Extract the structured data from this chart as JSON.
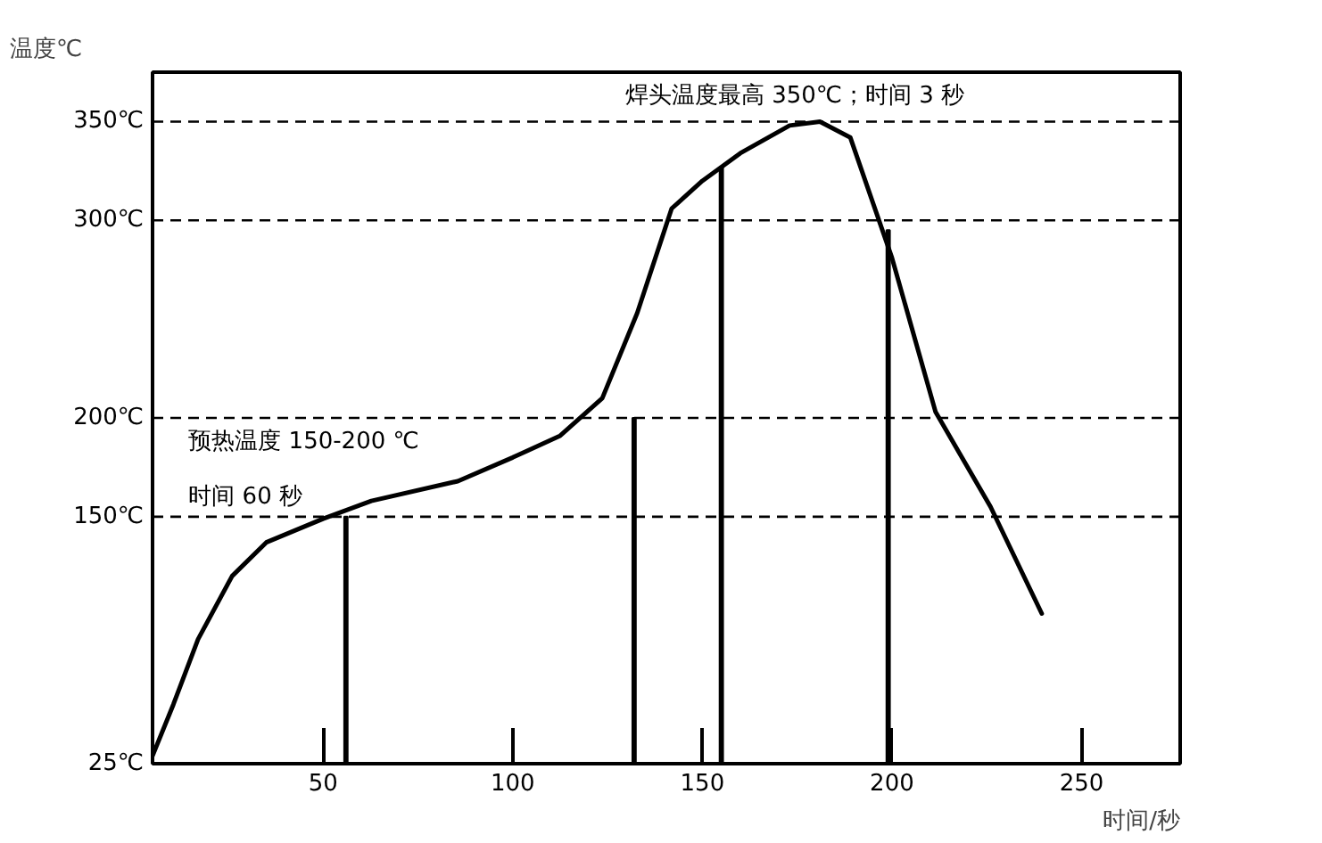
{
  "chart_data": {
    "type": "line",
    "xlabel": "时间/秒",
    "ylabel": "温度℃",
    "xlim": [
      5,
      276
    ],
    "ylim": [
      25,
      375
    ],
    "xticks": [
      50,
      100,
      150,
      200,
      250
    ],
    "yticks": [
      {
        "value": 25,
        "label": "25℃"
      },
      {
        "value": 150,
        "label": "150℃"
      },
      {
        "value": 200,
        "label": "200℃"
      },
      {
        "value": 300,
        "label": "300℃"
      },
      {
        "value": 350,
        "label": "350℃"
      }
    ],
    "series": [
      {
        "color": "#000000",
        "x": [
          5,
          10.5,
          17,
          26,
          35,
          50,
          62.7,
          85.5,
          100,
          112.5,
          123.6,
          132.8,
          141.9,
          150,
          160,
          173,
          181,
          189,
          200,
          211.5,
          226,
          239.5
        ],
        "values": [
          29,
          55,
          88,
          120,
          137,
          149,
          158,
          168,
          180,
          191,
          210,
          253,
          306,
          320,
          334,
          348,
          350,
          342,
          281,
          203,
          155,
          101
        ]
      },
      {
        "type": "bar",
        "color": "#000000",
        "x": [
          56,
          132,
          155,
          199
        ],
        "values": [
          150,
          200,
          327,
          295
        ]
      }
    ],
    "ref_lines": [
      {
        "axis": "y",
        "value": 350,
        "line_style": "dashed",
        "color": "#000000"
      },
      {
        "axis": "y",
        "value": 300,
        "line_style": "dashed",
        "color": "#000000"
      },
      {
        "axis": "y",
        "value": 200,
        "line_style": "dashed",
        "color": "#000000"
      },
      {
        "axis": "y",
        "value": 150,
        "line_style": "dashed",
        "color": "#000000"
      }
    ],
    "annotations": [
      "焊头温度最高 350℃；时间 3 秒",
      "预热温度 150-200 ℃",
      "时间 60 秒"
    ]
  }
}
